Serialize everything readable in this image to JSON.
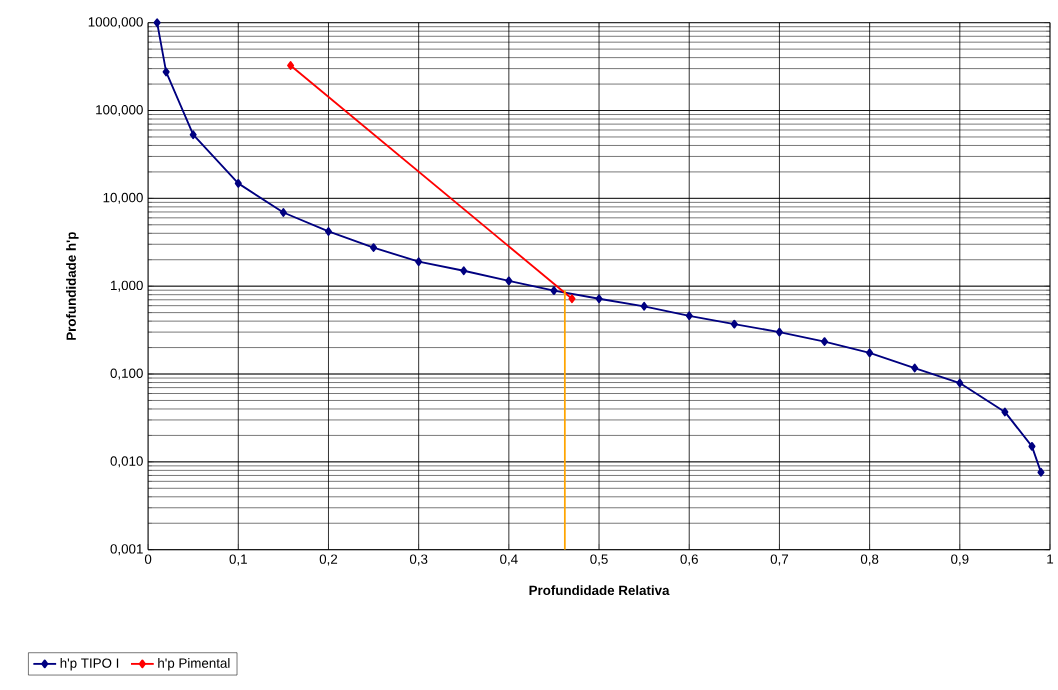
{
  "chart_data": {
    "type": "line",
    "xlabel": "Profundidade Relativa",
    "ylabel": "Profundidade h'p",
    "log": "y",
    "grid": true,
    "legend": "bottom left",
    "marker": "diamond",
    "xlim": [
      0,
      1
    ],
    "ylim": [
      0.001,
      1000
    ],
    "xticks": [
      0,
      {
        "value": 0.1,
        "label": "0,1"
      },
      {
        "value": 0.2,
        "label": "0,2"
      },
      {
        "value": 0.3,
        "label": "0,3"
      },
      {
        "value": 0.4,
        "label": "0,4"
      },
      {
        "value": 0.5,
        "label": "0,5"
      },
      {
        "value": 0.6,
        "label": "0,6"
      },
      {
        "value": 0.7,
        "label": "0,7"
      },
      {
        "value": 0.8,
        "label": "0,8"
      },
      {
        "value": 0.9,
        "label": "0,9"
      },
      1
    ],
    "yticks": [
      {
        "value": 0.001,
        "label": "0,001"
      },
      {
        "value": 0.01,
        "label": "0,010"
      },
      {
        "value": 0.1,
        "label": "0,100"
      },
      {
        "value": 1,
        "label": "1,000"
      },
      {
        "value": 10,
        "label": "10,000"
      },
      {
        "value": 100,
        "label": "100,000"
      },
      {
        "value": 1000,
        "label": "1000,000"
      }
    ],
    "series": [
      {
        "name": "h'p TIPO I",
        "color": "#000080",
        "x": [
          0.01,
          0.02,
          0.05,
          0.1,
          0.15,
          0.2,
          0.25,
          0.3,
          0.35,
          0.4,
          0.45,
          0.5,
          0.55,
          0.6,
          0.65,
          0.7,
          0.75,
          0.8,
          0.85,
          0.9,
          0.95,
          0.98,
          0.99
        ],
        "values": [
          1000,
          275,
          53,
          14.8,
          6.9,
          4.2,
          2.75,
          1.9,
          1.5,
          1.15,
          0.89,
          0.72,
          0.59,
          0.46,
          0.37,
          0.3,
          0.234,
          0.174,
          0.117,
          0.079,
          0.037,
          0.015,
          0.0076
        ]
      },
      {
        "name": "h'p Pimental",
        "color": "#ff0000",
        "x": [
          0.158,
          0.47
        ],
        "values": [
          325,
          0.72
        ]
      },
      {
        "color": "#ffa500",
        "marker": "none",
        "x": [
          0.462,
          0.462
        ],
        "values": [
          0.001,
          0.9
        ]
      }
    ]
  }
}
